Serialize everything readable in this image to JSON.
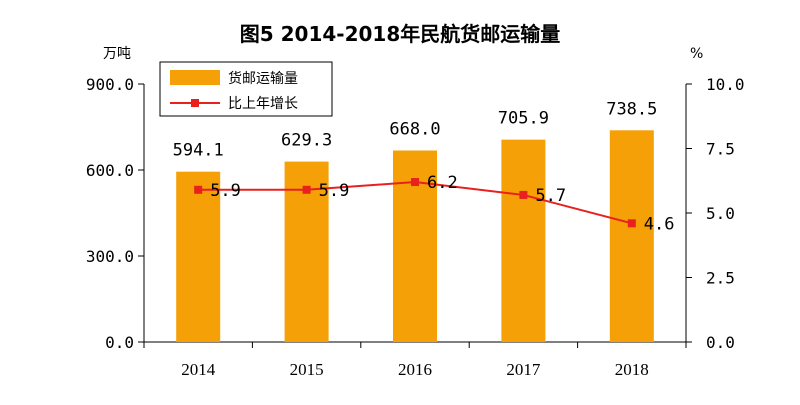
{
  "chart_data": {
    "type": "bar",
    "title": "图5 2014-2018年民航货邮运输量",
    "categories": [
      "2014",
      "2015",
      "2016",
      "2017",
      "2018"
    ],
    "series": [
      {
        "name": "货邮运输量",
        "type": "bar",
        "axis": "left",
        "values": [
          594.1,
          629.3,
          668.0,
          705.9,
          738.5
        ],
        "labels": [
          "594.1",
          "629.3",
          "668.0",
          "705.9",
          "738.5"
        ],
        "color": "#F5A006"
      },
      {
        "name": "比上年增长",
        "type": "line",
        "axis": "right",
        "values": [
          5.9,
          5.9,
          6.2,
          5.7,
          4.6
        ],
        "labels": [
          "5.9",
          "5.9",
          "6.2",
          "5.7",
          "4.6"
        ],
        "color": "#E8201E"
      }
    ],
    "ylabel_left": "万吨",
    "ylabel_right": "%",
    "ylim_left": [
      0,
      900
    ],
    "ylim_right": [
      0,
      10
    ],
    "yticks_left": [
      "0.0",
      "300.0",
      "600.0",
      "900.0"
    ],
    "yticks_right": [
      "0.0",
      "2.5",
      "5.0",
      "7.5",
      "10.0"
    ],
    "grid": false,
    "legend_position": "top-left"
  }
}
